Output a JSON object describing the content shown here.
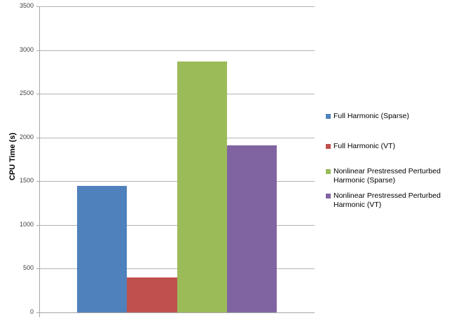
{
  "chart_data": {
    "type": "bar",
    "title": "",
    "xlabel": "",
    "ylabel": "CPU Time (s)",
    "ylim": [
      0,
      3500
    ],
    "yticks": [
      0,
      500,
      1000,
      1500,
      2000,
      2500,
      3000,
      3500
    ],
    "grid": true,
    "legend_position": "right",
    "categories": [
      ""
    ],
    "series": [
      {
        "name": "Full Harmonic (Sparse)",
        "values": [
          1450
        ],
        "color": "#4f81bd"
      },
      {
        "name": "Full Harmonic (VT)",
        "values": [
          400
        ],
        "color": "#c0504d"
      },
      {
        "name": "Nonlinear Prestressed Perturbed Harmonic (Sparse)",
        "values": [
          2870
        ],
        "color": "#9bbb59"
      },
      {
        "name": "Nonlinear Prestressed Perturbed Harmonic (VT)",
        "values": [
          1910
        ],
        "color": "#8064a2"
      }
    ]
  },
  "axis": {
    "ylabel": "CPU Time (s)",
    "ticks": [
      "0",
      "500",
      "1000",
      "1500",
      "2000",
      "2500",
      "3000",
      "3500"
    ]
  },
  "legend": {
    "items": [
      {
        "label": "Full Harmonic (Sparse)",
        "color": "#4f81bd"
      },
      {
        "label": "Full Harmonic (VT)",
        "color": "#c0504d"
      },
      {
        "label": "Nonlinear Prestressed Perturbed Harmonic (Sparse)",
        "color": "#9bbb59"
      },
      {
        "label": "Nonlinear Prestressed Perturbed Harmonic (VT)",
        "color": "#8064a2"
      }
    ]
  }
}
